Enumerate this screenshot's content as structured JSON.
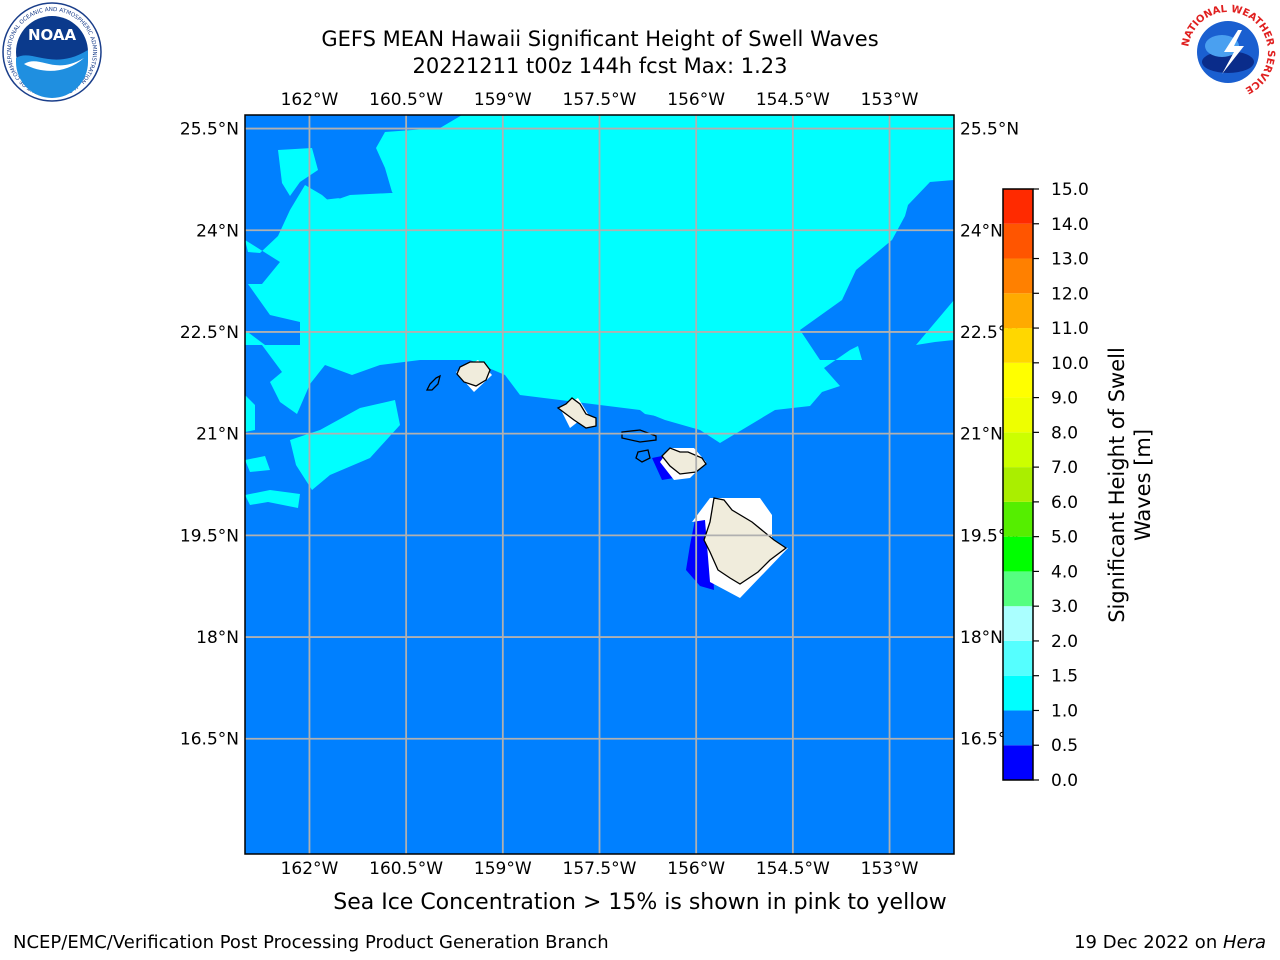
{
  "header": {
    "title_line1": "GEFS MEAN Hawaii Significant Height of Swell Waves",
    "title_line2": "20221211 t00z 144h fcst   Max: 1.23"
  },
  "logos": {
    "left": "noaa-logo",
    "left_text": "NOAA",
    "left_ring_text": "NATIONAL OCEANIC AND ATMOSPHERIC ADMINISTRATION · U.S. DEPARTMENT OF COMMERCE",
    "right": "nws-logo",
    "right_ring_text": "NATIONAL WEATHER SERVICE"
  },
  "map": {
    "lon_range": [
      -163,
      -152
    ],
    "lat_range": [
      14.8,
      25.7
    ],
    "lon_ticks": [
      "162°W",
      "160.5°W",
      "159°W",
      "157.5°W",
      "156°W",
      "154.5°W",
      "153°W"
    ],
    "lon_values": [
      -162,
      -160.5,
      -159,
      -157.5,
      -156,
      -154.5,
      -153
    ],
    "lat_ticks": [
      "25.5°N",
      "24°N",
      "22.5°N",
      "21°N",
      "19.5°N",
      "18°N",
      "16.5°N"
    ],
    "lat_values": [
      25.5,
      24,
      22.5,
      21,
      19.5,
      18,
      16.5
    ],
    "colors": {
      "ocean_low": "#0080ff",
      "ocean_high": "#00ffff",
      "shallow": "#0000ff",
      "land": "#f0ecdc",
      "grid": "#b0b0b0"
    }
  },
  "colorbar": {
    "label": "Significant Height of Swell Waves [m]",
    "label_line1": "Significant Height of Swell",
    "label_line2": "Waves [m]",
    "ticks": [
      "0.0",
      "0.5",
      "1.0",
      "1.5",
      "2.0",
      "3.0",
      "4.0",
      "5.0",
      "6.0",
      "7.0",
      "8.0",
      "9.0",
      "10.0",
      "11.0",
      "12.0",
      "13.0",
      "14.0",
      "15.0"
    ],
    "colors": [
      "#0000ff",
      "#0080ff",
      "#00ffff",
      "#55ffff",
      "#aaffff",
      "#55ff80",
      "#00ff00",
      "#55ee00",
      "#aaee00",
      "#ccff00",
      "#eeff00",
      "#ffff00",
      "#ffd700",
      "#ffaa00",
      "#ff8000",
      "#ff5500",
      "#ff2a00",
      "#ff0000"
    ]
  },
  "caption": "Sea Ice Concentration > 15% is shown in pink to yellow",
  "footer": {
    "left": "NCEP/EMC/Verification Post Processing Product Generation Branch",
    "right_date": "19 Dec 2022 on ",
    "right_host": "Hera"
  }
}
